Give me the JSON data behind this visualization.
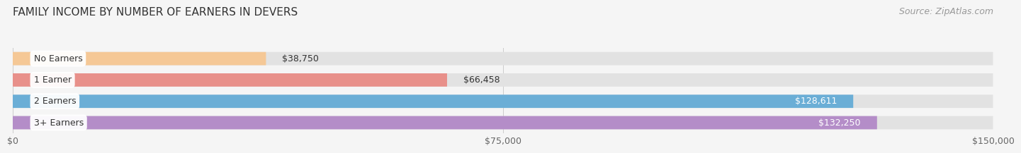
{
  "title": "FAMILY INCOME BY NUMBER OF EARNERS IN DEVERS",
  "source": "Source: ZipAtlas.com",
  "categories": [
    "No Earners",
    "1 Earner",
    "2 Earners",
    "3+ Earners"
  ],
  "values": [
    38750,
    66458,
    128611,
    132250
  ],
  "bar_colors": [
    "#f5c896",
    "#e8908a",
    "#6baed6",
    "#b48dc8"
  ],
  "bar_bg_color": "#e2e2e2",
  "label_colors": [
    "#333333",
    "#333333",
    "#ffffff",
    "#ffffff"
  ],
  "value_labels": [
    "$38,750",
    "$66,458",
    "$128,611",
    "$132,250"
  ],
  "xlim": [
    0,
    150000
  ],
  "xticks": [
    0,
    75000,
    150000
  ],
  "xticklabels": [
    "$0",
    "$75,000",
    "$150,000"
  ],
  "background_color": "#f5f5f5",
  "title_fontsize": 11,
  "source_fontsize": 9,
  "label_fontsize": 9,
  "value_fontsize": 9
}
